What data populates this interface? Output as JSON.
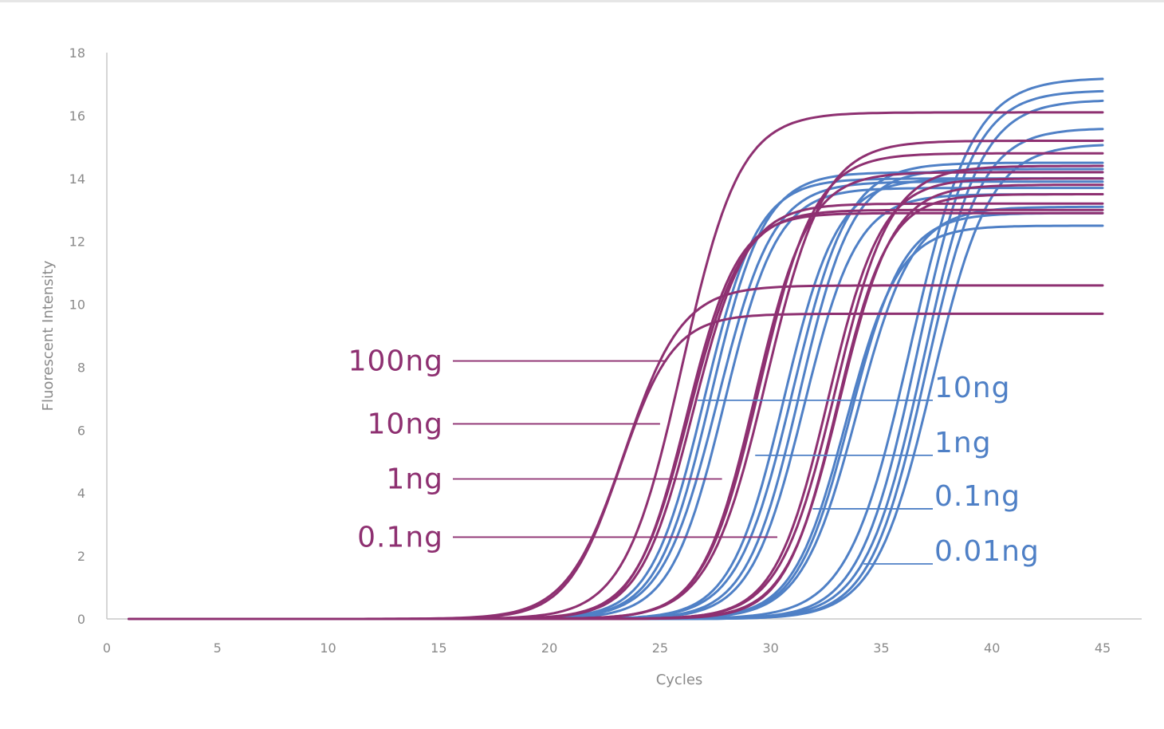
{
  "chart_data": {
    "type": "line",
    "title": "",
    "xlabel": "Cycles",
    "ylabel": "Fluorescent Intensity",
    "xlim": [
      0,
      45
    ],
    "ylim": [
      0,
      18
    ],
    "x_ticks": [
      0,
      5,
      10,
      15,
      20,
      25,
      30,
      35,
      40,
      45
    ],
    "y_ticks": [
      0,
      2,
      4,
      6,
      8,
      10,
      12,
      14,
      16,
      18
    ],
    "grid": false,
    "colors": {
      "magenta": "#8e3071",
      "blue": "#4f80c6",
      "axis": "#c8c8c8",
      "text": "#8a8a8a"
    },
    "curve_form": "sigmoid",
    "curve_x_range": [
      1,
      45
    ],
    "series": [
      {
        "group": "magenta",
        "plateau": 16.1,
        "midpoint": 26.0,
        "slope": 1.3
      },
      {
        "group": "magenta",
        "plateau": 9.7,
        "midpoint": 23.2,
        "slope": 1.2
      },
      {
        "group": "magenta",
        "plateau": 10.6,
        "midpoint": 23.4,
        "slope": 1.3
      },
      {
        "group": "magenta",
        "plateau": 13.0,
        "midpoint": 26.3,
        "slope": 1.2
      },
      {
        "group": "magenta",
        "plateau": 13.2,
        "midpoint": 26.5,
        "slope": 1.2
      },
      {
        "group": "magenta",
        "plateau": 12.9,
        "midpoint": 26.2,
        "slope": 1.15
      },
      {
        "group": "magenta",
        "plateau": 14.8,
        "midpoint": 29.5,
        "slope": 1.25
      },
      {
        "group": "magenta",
        "plateau": 15.2,
        "midpoint": 29.8,
        "slope": 1.3
      },
      {
        "group": "magenta",
        "plateau": 14.2,
        "midpoint": 29.3,
        "slope": 1.2
      },
      {
        "group": "magenta",
        "plateau": 14.0,
        "midpoint": 32.6,
        "slope": 1.2
      },
      {
        "group": "magenta",
        "plateau": 14.4,
        "midpoint": 32.9,
        "slope": 1.25
      },
      {
        "group": "magenta",
        "plateau": 13.8,
        "midpoint": 33.1,
        "slope": 1.2
      },
      {
        "group": "magenta",
        "plateau": 13.5,
        "midpoint": 33.0,
        "slope": 1.15
      },
      {
        "group": "blue",
        "plateau": 14.0,
        "midpoint": 27.0,
        "slope": 1.2
      },
      {
        "group": "blue",
        "plateau": 14.2,
        "midpoint": 27.3,
        "slope": 1.2
      },
      {
        "group": "blue",
        "plateau": 13.9,
        "midpoint": 27.6,
        "slope": 1.25
      },
      {
        "group": "blue",
        "plateau": 13.7,
        "midpoint": 27.9,
        "slope": 1.2
      },
      {
        "group": "blue",
        "plateau": 14.0,
        "midpoint": 30.6,
        "slope": 1.2
      },
      {
        "group": "blue",
        "plateau": 14.5,
        "midpoint": 31.0,
        "slope": 1.25
      },
      {
        "group": "blue",
        "plateau": 14.3,
        "midpoint": 31.3,
        "slope": 1.2
      },
      {
        "group": "blue",
        "plateau": 13.5,
        "midpoint": 31.5,
        "slope": 1.2
      },
      {
        "group": "blue",
        "plateau": 12.5,
        "midpoint": 33.4,
        "slope": 1.2
      },
      {
        "group": "blue",
        "plateau": 12.9,
        "midpoint": 33.6,
        "slope": 1.2
      },
      {
        "group": "blue",
        "plateau": 13.1,
        "midpoint": 33.9,
        "slope": 1.25
      },
      {
        "group": "blue",
        "plateau": 17.2,
        "midpoint": 36.3,
        "slope": 1.4
      },
      {
        "group": "blue",
        "plateau": 16.8,
        "midpoint": 36.6,
        "slope": 1.3
      },
      {
        "group": "blue",
        "plateau": 16.5,
        "midpoint": 36.9,
        "slope": 1.3
      },
      {
        "group": "blue",
        "plateau": 15.6,
        "midpoint": 37.0,
        "slope": 1.25
      },
      {
        "group": "blue",
        "plateau": 15.1,
        "midpoint": 37.3,
        "slope": 1.3
      }
    ],
    "annotations": {
      "magenta": [
        {
          "label": "100ng",
          "y": 8.2,
          "x_end": 25.3
        },
        {
          "label": "10ng",
          "y": 6.2,
          "x_end": 25.0
        },
        {
          "label": "1ng",
          "y": 4.45,
          "x_end": 27.8
        },
        {
          "label": "0.1ng",
          "y": 2.6,
          "x_end": 30.3
        }
      ],
      "blue": [
        {
          "label": "10ng",
          "y": 6.95,
          "x_start": 26.7
        },
        {
          "label": "1ng",
          "y": 5.2,
          "x_start": 29.3
        },
        {
          "label": "0.1ng",
          "y": 3.5,
          "x_start": 31.9
        },
        {
          "label": "0.01ng",
          "y": 1.75,
          "x_start": 34.2
        }
      ]
    }
  }
}
